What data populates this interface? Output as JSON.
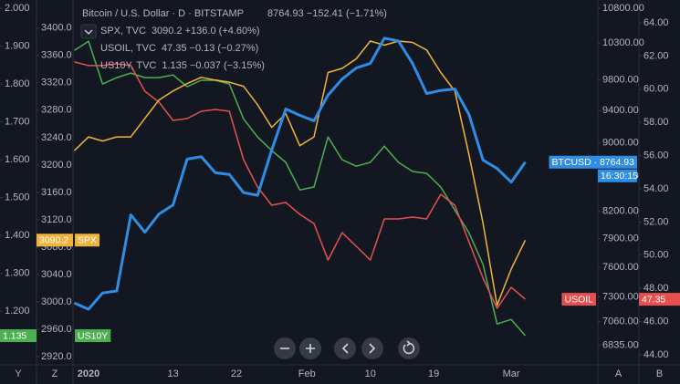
{
  "chart_data": {
    "type": "line",
    "grid": true,
    "x": [
      -2,
      0,
      2,
      4,
      6,
      8,
      10,
      12,
      14,
      16,
      18,
      20,
      22,
      24,
      26,
      28,
      30,
      32,
      34,
      36,
      38,
      40,
      42,
      44,
      46,
      48,
      50,
      52,
      54,
      56,
      58,
      60,
      62
    ],
    "xlim": [
      -2.2,
      72.3
    ],
    "xticks": [
      {
        "value": 0,
        "label": "2020"
      },
      {
        "value": 12,
        "label": "13"
      },
      {
        "value": 21,
        "label": "22"
      },
      {
        "value": 31,
        "label": "Feb"
      },
      {
        "value": 40,
        "label": "10"
      },
      {
        "value": 49,
        "label": "19"
      },
      {
        "value": 60,
        "label": "Mar"
      }
    ],
    "axes": [
      {
        "ylim": [
          1.058,
          2.022
        ],
        "corner": "Y",
        "yticks": [
          {
            "value": 2.0,
            "label": "2.000"
          },
          {
            "value": 1.9,
            "label": "1.900"
          },
          {
            "value": 1.8,
            "label": "1.800"
          },
          {
            "value": 1.7,
            "label": "1.700"
          },
          {
            "value": 1.6,
            "label": "1.600"
          },
          {
            "value": 1.5,
            "label": "1.500"
          },
          {
            "value": 1.4,
            "label": "1.400"
          },
          {
            "value": 1.3,
            "label": "1.300"
          },
          {
            "value": 1.2,
            "label": "1.200"
          }
        ]
      },
      {
        "ylim": [
          2908,
          3441
        ],
        "corner": "Z",
        "yticks": [
          {
            "value": 3400,
            "label": "3400.0"
          },
          {
            "value": 3360,
            "label": "3360.0"
          },
          {
            "value": 3320,
            "label": "3320.0"
          },
          {
            "value": 3280,
            "label": "3280.0"
          },
          {
            "value": 3240,
            "label": "3240.0"
          },
          {
            "value": 3200,
            "label": "3200.0"
          },
          {
            "value": 3160,
            "label": "3160.0"
          },
          {
            "value": 3120,
            "label": "3120.0"
          },
          {
            "value": 3080,
            "label": "3080.0"
          },
          {
            "value": 3040,
            "label": "3040.0"
          },
          {
            "value": 3000,
            "label": "3000.0"
          },
          {
            "value": 2960,
            "label": "2960.0"
          },
          {
            "value": 2920,
            "label": "2920.0"
          }
        ]
      },
      {
        "ylim": [
          6658,
          10921
        ],
        "log": true,
        "grid": true,
        "corner": "A",
        "yticks": [
          {
            "value": 10800,
            "label": "10800.00"
          },
          {
            "value": 10300,
            "label": "10300.00"
          },
          {
            "value": 9800,
            "label": "9800.00"
          },
          {
            "value": 9400,
            "label": "9400.00"
          },
          {
            "value": 9000,
            "label": "9000.00"
          },
          {
            "value": 8600,
            "label": "8600.00"
          },
          {
            "value": 8200,
            "label": "8200.00"
          },
          {
            "value": 7900,
            "label": "7900.00"
          },
          {
            "value": 7600,
            "label": "7600.00"
          },
          {
            "value": 7300,
            "label": "7300.00"
          },
          {
            "value": 7060,
            "label": "7060.00"
          },
          {
            "value": 6835,
            "label": "6835.00"
          }
        ]
      },
      {
        "ylim": [
          43.4,
          65.37
        ],
        "corner": "B",
        "yticks": [
          {
            "value": 64,
            "label": "64.00"
          },
          {
            "value": 62,
            "label": "62.00"
          },
          {
            "value": 60,
            "label": "60.00"
          },
          {
            "value": 58,
            "label": "58.00"
          },
          {
            "value": 56,
            "label": "56.00"
          },
          {
            "value": 54,
            "label": "54.00"
          },
          {
            "value": 52,
            "label": "52.00"
          },
          {
            "value": 50,
            "label": "50.00"
          },
          {
            "value": 48,
            "label": "48.00"
          },
          {
            "value": 46,
            "label": "46.00"
          },
          {
            "value": 44,
            "label": "44.00"
          }
        ]
      }
    ],
    "series": [
      {
        "name": "Bitcoin / U.S. Dollar · D · BITSTAMP",
        "quote": "8764.93 −152.41 (−1.71%)",
        "color": "#2f8de4",
        "axis": 2,
        "width": 3,
        "tag": "BTCUSD · 8764.93",
        "countdown": "16:30:15",
        "value_tag": false,
        "values": [
          7240,
          7180,
          7340,
          7360,
          8160,
          7970,
          8170,
          8270,
          8800,
          8830,
          8640,
          8620,
          8410,
          8380,
          8910,
          9420,
          9340,
          9270,
          9600,
          9810,
          9960,
          10020,
          10370,
          10330,
          10020,
          9620,
          9660,
          9680,
          9350,
          8790,
          8690,
          8530,
          8764.93
        ]
      },
      {
        "name": "SPX, TVC",
        "quote": "3090.2 +136.0 (+4.60%)",
        "color": "#f0b43c",
        "axis": 1,
        "width": 1.5,
        "tag": "SPX",
        "value_tag": true,
        "values": [
          3221,
          3241,
          3235,
          3241,
          3241,
          3268,
          3295,
          3308,
          3319,
          3328,
          3324,
          3321,
          3315,
          3288,
          3255,
          3275,
          3228,
          3241,
          3335,
          3341,
          3355,
          3381,
          3375,
          3381,
          3379,
          3368,
          3335,
          3308,
          3215,
          3115,
          2995,
          3048,
          3090.2
        ]
      },
      {
        "name": "USOIL, TVC",
        "quote": "47.35 −0.13 (−0.27%)",
        "color": "#e5504f",
        "axis": 3,
        "width": 1.5,
        "tag": "USOIL",
        "value_tag": true,
        "values": [
          61.64,
          61.42,
          61.42,
          61.53,
          61.42,
          59.88,
          59.22,
          58.12,
          58.23,
          58.67,
          58.78,
          58.67,
          55.76,
          54.11,
          53.01,
          53.18,
          52.46,
          51.91,
          49.71,
          51.36,
          50.54,
          49.71,
          52.19,
          52.19,
          52.3,
          52.19,
          53.67,
          53.01,
          50.81,
          48.62,
          46.8,
          48.07,
          47.35
        ]
      },
      {
        "name": "US10Y, TVC",
        "quote": "1.135 −0.037 (−3.15%)",
        "color": "#4caf50",
        "axis": 0,
        "width": 1.5,
        "tag": "US10Y",
        "value_tag": true,
        "values": [
          1.889,
          1.913,
          1.8,
          1.817,
          1.829,
          1.817,
          1.817,
          1.824,
          1.793,
          1.81,
          1.81,
          1.8,
          1.708,
          1.66,
          1.624,
          1.593,
          1.52,
          1.528,
          1.66,
          1.6,
          1.583,
          1.593,
          1.636,
          1.593,
          1.569,
          1.564,
          1.528,
          1.467,
          1.407,
          1.323,
          1.166,
          1.178,
          1.135
        ]
      }
    ]
  }
}
